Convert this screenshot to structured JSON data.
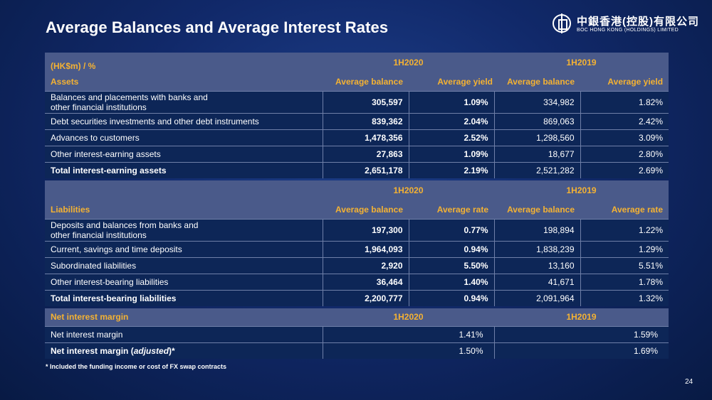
{
  "title": "Average Balances and Average Interest Rates",
  "logo": {
    "cn": "中銀香港(控股)有限公司",
    "en": "BOC HONG KONG (HOLDINGS) LIMITED"
  },
  "assets": {
    "unit": "(HK$m) / %",
    "section": "Assets",
    "period_a": "1H2020",
    "period_b": "1H2019",
    "col_balance": "Average balance",
    "col_yield": "Average yield",
    "rows": [
      {
        "label": "Balances and placements with banks and",
        "label2": "other financial institutions",
        "a_bal": "305,597",
        "a_rate": "1.09%",
        "b_bal": "334,982",
        "b_rate": "1.82%"
      },
      {
        "label": "Debt securities investments and other debt instruments",
        "label2": "",
        "a_bal": "839,362",
        "a_rate": "2.04%",
        "b_bal": "869,063",
        "b_rate": "2.42%"
      },
      {
        "label": "Advances to customers",
        "label2": "",
        "a_bal": "1,478,356",
        "a_rate": "2.52%",
        "b_bal": "1,298,560",
        "b_rate": "3.09%"
      },
      {
        "label": "Other interest-earning assets",
        "label2": "",
        "a_bal": "27,863",
        "a_rate": "1.09%",
        "b_bal": "18,677",
        "b_rate": "2.80%"
      }
    ],
    "total": {
      "label": "Total interest-earning assets",
      "a_bal": "2,651,178",
      "a_rate": "2.19%",
      "b_bal": "2,521,282",
      "b_rate": "2.69%"
    }
  },
  "liabilities": {
    "section": "Liabilities",
    "period_a": "1H2020",
    "period_b": "1H2019",
    "col_balance": "Average balance",
    "col_rate": "Average rate",
    "rows": [
      {
        "label": "Deposits and balances from banks and",
        "label2": "other financial institutions",
        "a_bal": "197,300",
        "a_rate": "0.77%",
        "b_bal": "198,894",
        "b_rate": "1.22%"
      },
      {
        "label": "Current, savings and time deposits",
        "label2": "",
        "a_bal": "1,964,093",
        "a_rate": "0.94%",
        "b_bal": "1,838,239",
        "b_rate": "1.29%"
      },
      {
        "label": "Subordinated liabilities",
        "label2": "",
        "a_bal": "2,920",
        "a_rate": "5.50%",
        "b_bal": "13,160",
        "b_rate": "5.51%"
      },
      {
        "label": "Other interest-bearing liabilities",
        "label2": "",
        "a_bal": "36,464",
        "a_rate": "1.40%",
        "b_bal": "41,671",
        "b_rate": "1.78%"
      }
    ],
    "total": {
      "label": "Total interest-bearing liabilities",
      "a_bal": "2,200,777",
      "a_rate": "0.94%",
      "b_bal": "2,091,964",
      "b_rate": "1.32%"
    }
  },
  "nim": {
    "section": "Net interest margin",
    "period_a": "1H2020",
    "period_b": "1H2019",
    "row1": {
      "label": "Net interest margin",
      "a": "1.41%",
      "b": "1.59%"
    },
    "row2": {
      "label_pre": "Net interest margin (",
      "label_em": "adjusted",
      "label_post": ")*",
      "a": "1.50%",
      "b": "1.69%"
    }
  },
  "footnote": "* Included the funding income or cost of FX swap contracts",
  "page_number": "24"
}
